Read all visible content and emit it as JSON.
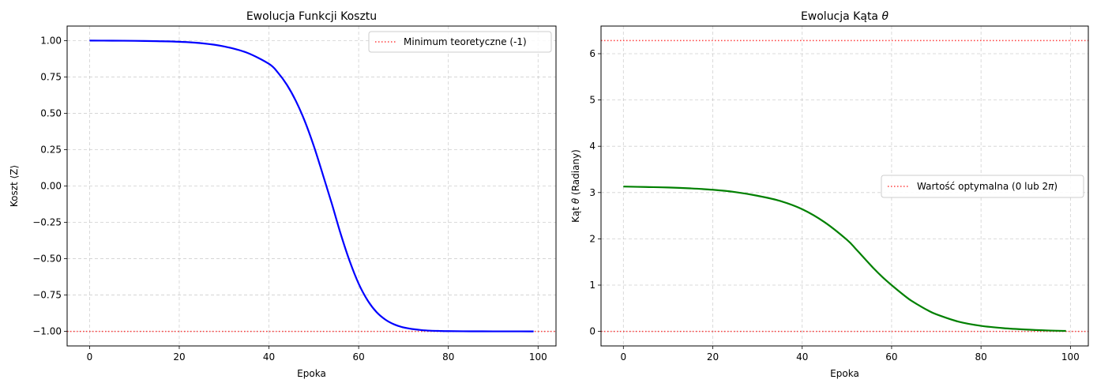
{
  "chart_data": [
    {
      "type": "line",
      "title": "Ewolucja Funkcji Kosztu",
      "xlabel": "Epoka",
      "ylabel": "Koszt ⟨Z⟩",
      "xlim": [
        -5,
        104
      ],
      "ylim": [
        -1.1,
        1.1
      ],
      "xticks": [
        0,
        20,
        40,
        60,
        80,
        100
      ],
      "yticks": [
        1.0,
        0.75,
        0.5,
        0.25,
        0.0,
        -0.25,
        -0.5,
        -0.75,
        -1.0
      ],
      "ytick_labels": [
        "1.00",
        "0.75",
        "0.50",
        "0.25",
        "0.00",
        "−0.25",
        "−0.50",
        "−0.75",
        "−1.00"
      ],
      "grid": true,
      "legend_position": "top-right",
      "series": [
        {
          "color": "#0000ff",
          "x": [
            0,
            5,
            10,
            15,
            20,
            25,
            30,
            35,
            40,
            42,
            44,
            46,
            48,
            50,
            52,
            54,
            56,
            58,
            60,
            62,
            64,
            66,
            68,
            70,
            72,
            74,
            76,
            78,
            80,
            85,
            90,
            95,
            99
          ],
          "y": [
            1.0,
            0.9995,
            0.9985,
            0.996,
            0.992,
            0.982,
            0.96,
            0.918,
            0.84,
            0.78,
            0.696,
            0.585,
            0.445,
            0.275,
            0.08,
            -0.12,
            -0.33,
            -0.517,
            -0.672,
            -0.787,
            -0.868,
            -0.92,
            -0.953,
            -0.973,
            -0.984,
            -0.991,
            -0.995,
            -0.997,
            -0.9983,
            -0.9995,
            -0.9998,
            -0.9999,
            -1.0
          ]
        }
      ],
      "reference_lines": [
        {
          "name": "Minimum teoretyczne (-1)",
          "y": -1.0,
          "color": "#ff0000",
          "style": "dotted"
        }
      ]
    },
    {
      "type": "line",
      "title": "Ewolucja Kąta θ",
      "xlabel": "Epoka",
      "ylabel": "Kąt θ (Radiany)",
      "xlim": [
        -5,
        104
      ],
      "ylim": [
        -0.314,
        6.597
      ],
      "xticks": [
        0,
        20,
        40,
        60,
        80,
        100
      ],
      "yticks": [
        0,
        1,
        2,
        3,
        4,
        5,
        6
      ],
      "ytick_labels": [
        "0",
        "1",
        "2",
        "3",
        "4",
        "5",
        "6"
      ],
      "grid": true,
      "legend_position": "center-right",
      "series": [
        {
          "color": "#008000",
          "x": [
            0,
            5,
            10,
            15,
            20,
            25,
            30,
            35,
            40,
            45,
            50,
            52,
            54,
            56,
            58,
            60,
            62,
            64,
            66,
            68,
            70,
            75,
            80,
            85,
            90,
            95,
            99
          ],
          "y": [
            3.13,
            3.12,
            3.11,
            3.09,
            3.06,
            3.01,
            2.93,
            2.82,
            2.64,
            2.36,
            1.98,
            1.78,
            1.57,
            1.36,
            1.17,
            1.0,
            0.84,
            0.69,
            0.57,
            0.46,
            0.37,
            0.21,
            0.12,
            0.07,
            0.04,
            0.02,
            0.01
          ]
        }
      ],
      "reference_lines": [
        {
          "name": "Wartość optymalna (0 lub 2π)",
          "y": [
            0,
            6.283
          ],
          "color": "#ff0000",
          "style": "dotted"
        }
      ]
    }
  ]
}
